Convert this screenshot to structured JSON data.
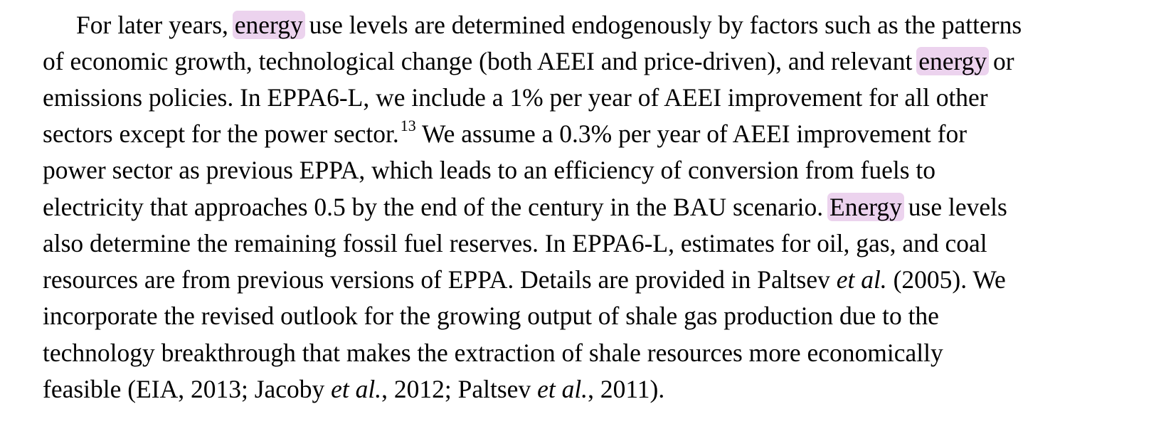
{
  "paragraph": {
    "line1": {
      "a": "For later years, ",
      "hl1": "energy",
      "b": " use levels are determined endogenously by factors such as the patterns"
    },
    "line2": {
      "a": "of economic growth, technological change (both AEEI and price-driven), and relevant ",
      "hl2": "energy",
      "b": " or"
    },
    "line3": "emissions policies. In EPPA6-L, we include a 1% per year of AEEI improvement for all other",
    "line4": {
      "a": "sectors except for the power sector.",
      "footnote": "13",
      "b": " We assume a 0.3% per year of AEEI improvement for"
    },
    "line5": "power sector as previous EPPA, which leads to an efficiency of conversion from fuels to",
    "line6": {
      "a": "electricity that approaches 0.5 by the end of the century in the BAU scenario. ",
      "hl3": "Energy",
      "b": " use levels"
    },
    "line7": "also determine the remaining fossil fuel reserves. In EPPA6-L, estimates for oil, gas, and coal",
    "line8": {
      "a": "resources are from previous versions of EPPA. Details are provided in Paltsev ",
      "italic": "et al.",
      "b": " (2005). We"
    },
    "line9": "incorporate the revised outlook for the growing output of shale gas production due to the",
    "line10": "technology breakthrough that makes the extraction of shale resources more economically",
    "line11": {
      "a": "feasible (EIA, 2013; Jacoby ",
      "italic1": "et al.",
      "b": ", 2012; Paltsev ",
      "italic2": "et al.",
      "c": ", 2011)."
    }
  },
  "colors": {
    "highlight": "#ecd3ee",
    "text": "#000000"
  }
}
